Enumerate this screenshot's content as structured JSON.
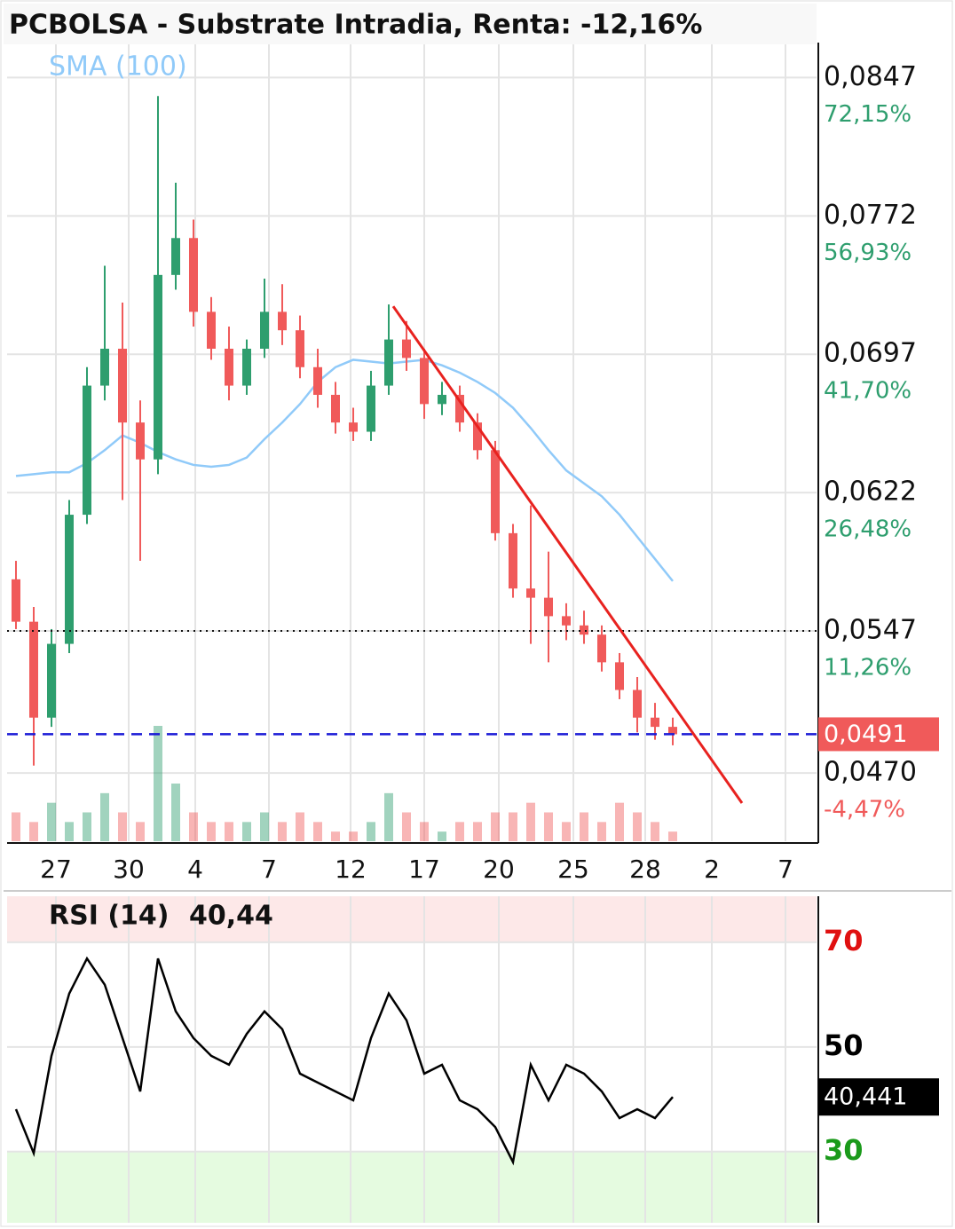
{
  "header": {
    "title": "PCBOLSA - Substrate Intradia, Renta: -12,16%"
  },
  "chart_data": [
    {
      "type": "candlestick",
      "up_color": "#2e9e6e",
      "down_color": "#f05a5a",
      "open": [
        0.0575,
        0.0552,
        0.05,
        0.054,
        0.061,
        0.068,
        0.07,
        0.066,
        0.064,
        0.074,
        0.076,
        0.072,
        0.07,
        0.068,
        0.07,
        0.072,
        0.071,
        0.069,
        0.0675,
        0.066,
        0.0655,
        0.068,
        0.0705,
        0.0695,
        0.067,
        0.0675,
        0.066,
        0.0645,
        0.06,
        0.057,
        0.0565,
        0.0555,
        0.055,
        0.0545,
        0.053,
        0.0515,
        0.05,
        0.0495
      ],
      "high": [
        0.0585,
        0.056,
        0.0548,
        0.0618,
        0.069,
        0.0745,
        0.0725,
        0.0672,
        0.0837,
        0.079,
        0.077,
        0.0728,
        0.0712,
        0.0705,
        0.0738,
        0.0735,
        0.0718,
        0.07,
        0.0682,
        0.0668,
        0.0688,
        0.0724,
        0.0715,
        0.07,
        0.0682,
        0.068,
        0.0665,
        0.065,
        0.0605,
        0.0615,
        0.059,
        0.0562,
        0.0558,
        0.055,
        0.0535,
        0.0522,
        0.0508,
        0.05
      ],
      "low": [
        0.0548,
        0.0474,
        0.0495,
        0.0535,
        0.0605,
        0.0672,
        0.0618,
        0.0585,
        0.0632,
        0.0732,
        0.0712,
        0.0694,
        0.0672,
        0.0675,
        0.0695,
        0.0702,
        0.0684,
        0.0668,
        0.0654,
        0.065,
        0.065,
        0.0675,
        0.0688,
        0.0662,
        0.0664,
        0.0655,
        0.064,
        0.0596,
        0.0565,
        0.054,
        0.053,
        0.0542,
        0.054,
        0.0525,
        0.051,
        0.0492,
        0.0488,
        0.0485
      ],
      "close": [
        0.0552,
        0.05,
        0.054,
        0.061,
        0.068,
        0.07,
        0.066,
        0.064,
        0.074,
        0.076,
        0.072,
        0.07,
        0.068,
        0.07,
        0.072,
        0.071,
        0.069,
        0.0675,
        0.066,
        0.0655,
        0.068,
        0.0705,
        0.0695,
        0.067,
        0.0675,
        0.066,
        0.0645,
        0.06,
        0.057,
        0.0565,
        0.0555,
        0.055,
        0.0545,
        0.053,
        0.0515,
        0.05,
        0.0495,
        0.0491
      ],
      "volume": [
        3,
        2,
        4,
        2,
        3,
        5,
        3,
        2,
        12,
        6,
        3,
        2,
        2,
        2,
        3,
        2,
        3,
        2,
        1,
        1,
        2,
        5,
        3,
        2,
        1,
        2,
        2,
        3,
        3,
        4,
        3,
        2,
        3,
        2,
        4,
        3,
        2,
        1
      ],
      "series": [
        {
          "name": "SMA (100)",
          "color": "#90caf9",
          "values": [
            0.0631,
            0.0632,
            0.0633,
            0.0633,
            0.0638,
            0.0645,
            0.0653,
            0.0649,
            0.0644,
            0.064,
            0.0637,
            0.0636,
            0.0637,
            0.0641,
            0.0651,
            0.066,
            0.067,
            0.0682,
            0.069,
            0.0694,
            0.0693,
            0.0692,
            0.0693,
            0.0694,
            0.0691,
            0.0687,
            0.0682,
            0.0676,
            0.0668,
            0.0657,
            0.0645,
            0.0634,
            0.0627,
            0.062,
            0.061,
            0.0598,
            0.0586,
            0.0574
          ]
        }
      ],
      "ylim": [
        0.0433,
        0.0865
      ],
      "yticks": [
        {
          "value": 0.0847,
          "label": "0,0847"
        },
        {
          "value": 0.0772,
          "label": "0,0772"
        },
        {
          "value": 0.0697,
          "label": "0,0697"
        },
        {
          "value": 0.0622,
          "label": "0,0622"
        },
        {
          "value": 0.0547,
          "label": "0,0547"
        },
        {
          "value": 0.047,
          "label": "0,0470"
        }
      ],
      "ytick_returns": [
        "72,15%",
        "56,93%",
        "41,70%",
        "26,48%",
        "11,26%",
        "-4,47%"
      ],
      "xlim": [
        0,
        45.6
      ],
      "xticks": [
        {
          "value": 2.75,
          "label": "27"
        },
        {
          "value": 6.85,
          "label": "30"
        },
        {
          "value": 10.6,
          "label": "4"
        },
        {
          "value": 14.75,
          "label": "7"
        },
        {
          "value": 19.35,
          "label": "12"
        },
        {
          "value": 23.5,
          "label": "17"
        },
        {
          "value": 27.7,
          "label": "20"
        },
        {
          "value": 31.9,
          "label": "25"
        },
        {
          "value": 35.95,
          "label": "28"
        },
        {
          "value": 39.7,
          "label": "2"
        },
        {
          "value": 43.85,
          "label": "7"
        }
      ],
      "reference_line": 0.0547,
      "last_price": {
        "value": 0.0491,
        "label": "0,0491"
      },
      "trendline": {
        "x": [
          21.75,
          41.4
        ],
        "y": [
          0.0723,
          0.04537
        ],
        "color": "#e8221f"
      },
      "grid": true
    },
    {
      "type": "line",
      "title": "RSI (14)",
      "value_label": "40,44",
      "color": "#000000",
      "values": [
        38.1,
        29.7,
        48.3,
        60.2,
        66.9,
        61.9,
        51.7,
        41.5,
        66.9,
        56.8,
        51.7,
        48.3,
        46.6,
        52.5,
        56.8,
        53.4,
        44.9,
        43.2,
        41.5,
        39.8,
        51.7,
        60.2,
        55.1,
        44.9,
        46.6,
        39.8,
        38.1,
        34.7,
        28.0,
        46.6,
        39.8,
        46.6,
        44.9,
        41.5,
        36.4,
        38.1,
        36.4,
        40.441
      ],
      "ylim": [
        16.4,
        78.8
      ],
      "yticks": [
        30,
        50,
        70
      ],
      "ytick_colors": [
        "#1a9a1a",
        "#000000",
        "#e01010"
      ],
      "overbought": 70,
      "oversold": 30,
      "last_value": {
        "value": 40.441,
        "label": "40,441"
      },
      "grid": true
    }
  ]
}
